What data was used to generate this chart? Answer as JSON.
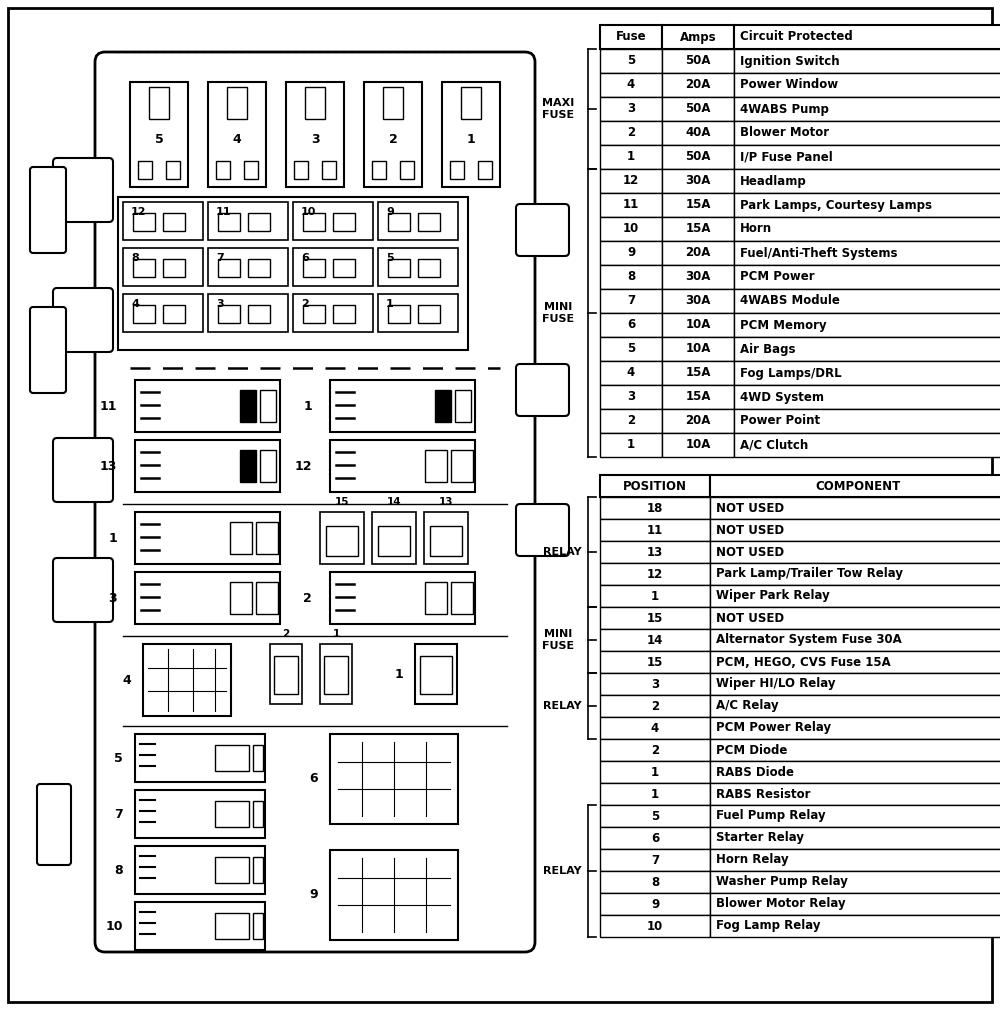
{
  "maxi_fuse_rows": [
    {
      "fuse": "5",
      "amps": "50A",
      "circuit": "Ignition Switch"
    },
    {
      "fuse": "4",
      "amps": "20A",
      "circuit": "Power Window"
    },
    {
      "fuse": "3",
      "amps": "50A",
      "circuit": "4WABS Pump"
    },
    {
      "fuse": "2",
      "amps": "40A",
      "circuit": "Blower Motor"
    },
    {
      "fuse": "1",
      "amps": "50A",
      "circuit": "I/P Fuse Panel"
    }
  ],
  "mini_fuse_rows": [
    {
      "fuse": "12",
      "amps": "30A",
      "circuit": "Headlamp"
    },
    {
      "fuse": "11",
      "amps": "15A",
      "circuit": "Park Lamps, Courtesy Lamps"
    },
    {
      "fuse": "10",
      "amps": "15A",
      "circuit": "Horn"
    },
    {
      "fuse": "9",
      "amps": "20A",
      "circuit": "Fuel/Anti-Theft Systems"
    },
    {
      "fuse": "8",
      "amps": "30A",
      "circuit": "PCM Power"
    },
    {
      "fuse": "7",
      "amps": "30A",
      "circuit": "4WABS Module"
    },
    {
      "fuse": "6",
      "amps": "10A",
      "circuit": "PCM Memory"
    },
    {
      "fuse": "5",
      "amps": "10A",
      "circuit": "Air Bags"
    },
    {
      "fuse": "4",
      "amps": "15A",
      "circuit": "Fog Lamps/DRL"
    },
    {
      "fuse": "3",
      "amps": "15A",
      "circuit": "4WD System"
    },
    {
      "fuse": "2",
      "amps": "20A",
      "circuit": "Power Point"
    },
    {
      "fuse": "1",
      "amps": "10A",
      "circuit": "A/C Clutch"
    }
  ],
  "relay_rows": [
    {
      "position": "18",
      "component": "NOT USED"
    },
    {
      "position": "11",
      "component": "NOT USED"
    },
    {
      "position": "13",
      "component": "NOT USED"
    },
    {
      "position": "12",
      "component": "Park Lamp/Trailer Tow Relay"
    },
    {
      "position": "1",
      "component": "Wiper Park Relay"
    },
    {
      "position": "15",
      "component": "NOT USED"
    },
    {
      "position": "14",
      "component": "Alternator System Fuse 30A"
    },
    {
      "position": "15",
      "component": "PCM, HEGO, CVS Fuse 15A"
    },
    {
      "position": "3",
      "component": "Wiper HI/LO Relay"
    },
    {
      "position": "2",
      "component": "A/C Relay"
    },
    {
      "position": "4",
      "component": "PCM Power Relay"
    },
    {
      "position": "2",
      "component": "PCM Diode"
    },
    {
      "position": "1",
      "component": "RABS Diode"
    },
    {
      "position": "1",
      "component": "RABS Resistor"
    },
    {
      "position": "5",
      "component": "Fuel Pump Relay"
    },
    {
      "position": "6",
      "component": "Starter Relay"
    },
    {
      "position": "7",
      "component": "Horn Relay"
    },
    {
      "position": "8",
      "component": "Washer Pump Relay"
    },
    {
      "position": "9",
      "component": "Blower Motor Relay"
    },
    {
      "position": "10",
      "component": "Fog Lamp Relay"
    }
  ]
}
